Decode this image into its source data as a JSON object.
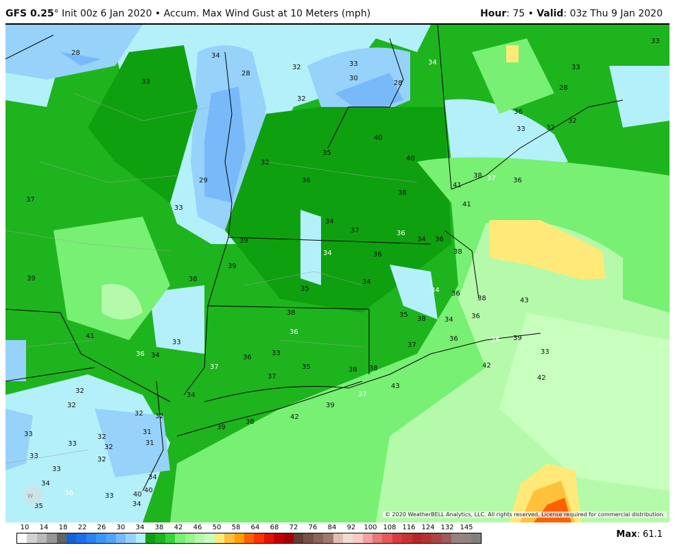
{
  "header": {
    "model": "GFS 0.25",
    "degree": "°",
    "init": " Init 00z 6 Jan 2020 • Accum. Max Wind Gust at 10 Meters (mph)",
    "hour_label": "Hour",
    "hour": ": 75 • ",
    "valid_label": "Valid",
    "valid": ": 03z Thu 9 Jan 2020"
  },
  "copyright": "© 2020 WeatherBELL Analytics, LLC. All rights reserved. License required for commercial distribution.",
  "logo": "WeatherBELL",
  "legend": {
    "ticks": [
      "10",
      "14",
      "18",
      "22",
      "26",
      "30",
      "34",
      "38",
      "42",
      "46",
      "50",
      "58",
      "64",
      "68",
      "72",
      "76",
      "84",
      "92",
      "100",
      "108",
      "116",
      "124",
      "132",
      "145"
    ],
    "colors": [
      "#ffffff",
      "#d2d2d2",
      "#b9b9b9",
      "#969696",
      "#646464",
      "#1464d2",
      "#1e6eeb",
      "#2882f0",
      "#3c96f5",
      "#50a5f5",
      "#78b9fa",
      "#96d2fa",
      "#b4f0fa",
      "#0fa00f",
      "#1eb41e",
      "#37d23c",
      "#78f073",
      "#96f58c",
      "#b4faaa",
      "#c8ffbe",
      "#ffe978",
      "#ffc03c",
      "#ffa000",
      "#ff6000",
      "#ff3200",
      "#e11400",
      "#c00000",
      "#a50000",
      "#643c32",
      "#785046",
      "#8c645a",
      "#a0786e",
      "#e1beb4",
      "#f0dcd2",
      "#ffc8c8",
      "#f5a0a0",
      "#e67878",
      "#e65a5a",
      "#d73c3c",
      "#c83232",
      "#b42828",
      "#b43232",
      "#aa4646",
      "#a05a5a",
      "#968282",
      "#968282",
      "#808080"
    ]
  },
  "max_label": "Max",
  "max_value": ": 61.1",
  "contour_labels": [
    "28",
    "33",
    "34",
    "28",
    "32",
    "33",
    "30",
    "28",
    "32",
    "34",
    "33",
    "33",
    "28",
    "36",
    "33",
    "32",
    "32",
    "40",
    "40",
    "35",
    "36",
    "29",
    "32",
    "36",
    "37",
    "33",
    "37",
    "38",
    "38",
    "41",
    "41",
    "37",
    "34",
    "36",
    "34",
    "39",
    "39",
    "36",
    "38",
    "34",
    "38",
    "36",
    "39",
    "34",
    "35",
    "34",
    "36",
    "38",
    "43",
    "39",
    "41",
    "38",
    "36",
    "35",
    "36",
    "38",
    "36",
    "36",
    "34",
    "33",
    "37",
    "36",
    "37",
    "38",
    "38",
    "42",
    "42",
    "43",
    "37",
    "36",
    "35",
    "32",
    "33",
    "34",
    "32",
    "32",
    "32",
    "31",
    "31",
    "33",
    "32",
    "32",
    "33",
    "32",
    "33",
    "34",
    "34",
    "33",
    "34",
    "35",
    "33",
    "40",
    "40",
    "36",
    "34",
    "42",
    "39",
    "38",
    "39",
    "37",
    "33"
  ]
}
